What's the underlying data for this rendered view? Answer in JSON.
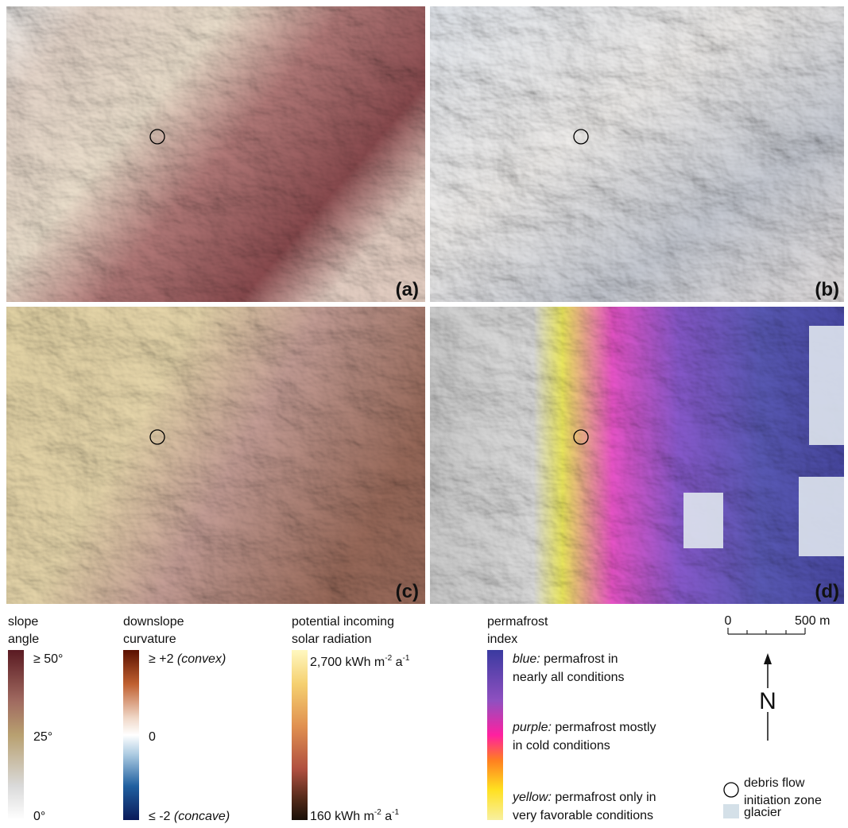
{
  "panels": [
    {
      "label": "(a)"
    },
    {
      "label": "(b)"
    },
    {
      "label": "(c)"
    },
    {
      "label": "(d)"
    }
  ],
  "legends": {
    "slope": {
      "title": [
        "slope",
        "angle"
      ],
      "labels": [
        "≥ 50°",
        "25°",
        "0°"
      ]
    },
    "curvature": {
      "title": [
        "downslope",
        "curvature"
      ],
      "top": {
        "text": "≥ +2",
        "note": "(convex)"
      },
      "middle": "0",
      "bottom": {
        "text": "≤ -2",
        "note": "(concave)"
      }
    },
    "solar": {
      "title": [
        "potential incoming",
        "solar radiation"
      ],
      "top": [
        "2,700 kWh m",
        "-2",
        " a",
        "-1"
      ],
      "bottom": [
        "160 kWh m",
        "-2",
        " a",
        "-1"
      ]
    },
    "permafrost": {
      "title": [
        "permafrost",
        "index"
      ],
      "items": [
        {
          "key": "blue:",
          "lines": [
            " permafrost in",
            "nearly all conditions"
          ]
        },
        {
          "key": "purple:",
          "lines": [
            " permafrost mostly",
            "in cold conditions"
          ]
        },
        {
          "key": "yellow:",
          "lines": [
            " permafrost only in",
            "very favorable conditions"
          ]
        }
      ]
    }
  },
  "scale": {
    "labels": [
      "0",
      "500 m"
    ]
  },
  "north": "N",
  "symbols": {
    "debris": [
      "debris flow",
      "initiation zone"
    ],
    "glacier": "glacier"
  }
}
